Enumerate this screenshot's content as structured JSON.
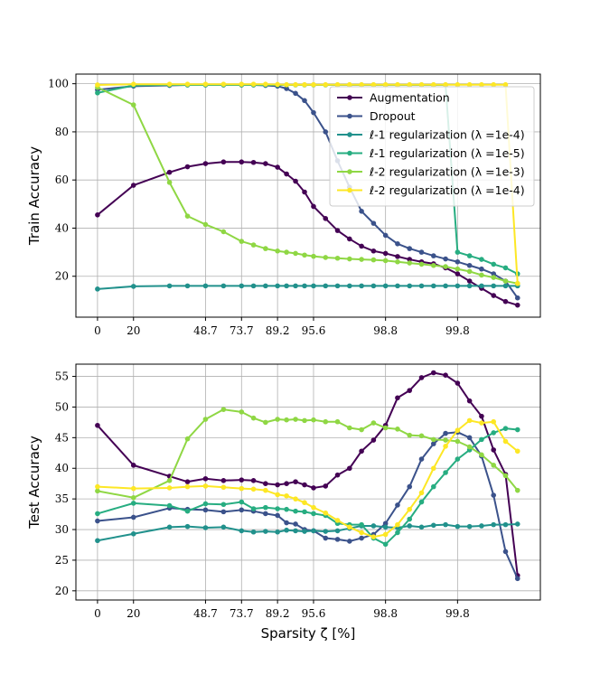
{
  "chart_data": [
    {
      "type": "line",
      "ylabel": "Train Accuracy",
      "xlabel": "",
      "x_tick_labels": [
        "0",
        "20",
        "48.7",
        "73.7",
        "89.2",
        "95.6",
        "98.8",
        "99.8"
      ],
      "x_tick_positions": [
        0,
        1,
        3,
        4,
        5,
        6,
        8,
        10
      ],
      "x_index": [
        0,
        1,
        2,
        2.5,
        3,
        3.5,
        4,
        4.3333,
        4.6667,
        5,
        5.25,
        5.5,
        5.75,
        6,
        6.3333,
        6.6667,
        7,
        7.3333,
        7.6667,
        8,
        8.3333,
        8.6667,
        9,
        9.3333,
        9.6667,
        10,
        10.3333,
        10.6667,
        11,
        11.3333,
        11.6667
      ],
      "xlim": [
        -0.6,
        12.3
      ],
      "ylim": [
        3,
        104
      ],
      "y_ticks": [
        20,
        40,
        60,
        80,
        100
      ],
      "legend_position": "top-right",
      "series": [
        {
          "name": "Augmentation",
          "color": "#440154",
          "values": [
            45.5,
            57.8,
            63.2,
            65.5,
            66.8,
            67.5,
            67.5,
            67.3,
            66.8,
            65.3,
            62.5,
            59.5,
            55,
            49,
            44,
            39,
            35.5,
            32.5,
            30.5,
            29.5,
            28.2,
            27,
            26,
            25.2,
            23.5,
            21,
            18,
            15,
            12,
            9.5,
            8
          ]
        },
        {
          "name": "Dropout",
          "color": "#3b528b",
          "values": [
            97.5,
            99,
            99.3,
            99.5,
            99.5,
            99.5,
            99.5,
            99.5,
            99.3,
            99,
            98,
            96,
            93,
            88,
            80,
            68,
            57,
            47,
            42,
            37,
            33.5,
            31.5,
            30,
            28.5,
            27.2,
            26,
            24.5,
            23,
            21,
            18,
            11
          ]
        },
        {
          "name": "ℓ-1 regularization (λ =1e-4)",
          "color": "#21918c",
          "values": [
            14.7,
            15.8,
            16,
            16,
            16,
            16,
            16,
            16,
            16,
            16,
            16,
            16,
            16,
            16,
            16,
            16,
            16,
            16,
            16,
            16,
            16,
            16,
            16,
            16,
            16,
            16,
            16,
            16,
            16,
            16,
            16
          ]
        },
        {
          "name": "ℓ-1 regularization (λ =1e-5)",
          "color": "#27ad81",
          "values": [
            96.2,
            99.3,
            99.5,
            99.5,
            99.5,
            99.5,
            99.5,
            99.5,
            99.5,
            99.5,
            99.5,
            99.5,
            99.5,
            99.5,
            99.5,
            99.5,
            99.5,
            99.5,
            99.5,
            99.5,
            99.5,
            99.5,
            99.5,
            99.5,
            99.5,
            30,
            28.5,
            27,
            25,
            23.5,
            21
          ]
        },
        {
          "name": "ℓ-2 regularization (λ =1e-3)",
          "color": "#8fd744",
          "values": [
            98.5,
            91.2,
            59,
            45,
            41.5,
            38.5,
            34.5,
            33,
            31.5,
            30.5,
            30,
            29.5,
            28.8,
            28.3,
            27.8,
            27.5,
            27.2,
            27,
            26.8,
            26.5,
            26,
            25.5,
            25,
            24.5,
            24,
            23,
            22,
            20.5,
            19.5,
            18,
            17
          ]
        },
        {
          "name": "ℓ-2 regularization (λ =1e-4)",
          "color": "#fde725",
          "values": [
            99.5,
            99.8,
            99.8,
            99.8,
            99.8,
            99.8,
            99.8,
            99.8,
            99.8,
            99.7,
            99.6,
            99.6,
            99.6,
            99.6,
            99.6,
            99.6,
            99.6,
            99.6,
            99.6,
            99.6,
            99.6,
            99.6,
            99.6,
            99.6,
            99.6,
            99.6,
            99.6,
            99.6,
            99.6,
            99.6,
            17
          ]
        }
      ]
    },
    {
      "type": "line",
      "ylabel": "Test Accuracy",
      "xlabel": "Sparsity ζ [%]",
      "x_tick_labels": [
        "0",
        "20",
        "48.7",
        "73.7",
        "89.2",
        "95.6",
        "98.8",
        "99.8"
      ],
      "x_tick_positions": [
        0,
        1,
        3,
        4,
        5,
        6,
        8,
        10
      ],
      "x_index": [
        0,
        1,
        2,
        2.5,
        3,
        3.5,
        4,
        4.3333,
        4.6667,
        5,
        5.25,
        5.5,
        5.75,
        6,
        6.3333,
        6.6667,
        7,
        7.3333,
        7.6667,
        8,
        8.3333,
        8.6667,
        9,
        9.3333,
        9.6667,
        10,
        10.3333,
        10.6667,
        11,
        11.3333,
        11.6667
      ],
      "xlim": [
        -0.6,
        12.3
      ],
      "ylim": [
        18.5,
        57
      ],
      "y_ticks": [
        20,
        25,
        30,
        35,
        40,
        45,
        50,
        55
      ],
      "series": [
        {
          "name": "Augmentation",
          "color": "#440154",
          "values": [
            47,
            40.5,
            38.7,
            37.8,
            38.3,
            38,
            38.1,
            38,
            37.5,
            37.3,
            37.5,
            37.8,
            37.3,
            36.8,
            37.1,
            38.9,
            40,
            42.8,
            44.6,
            47,
            51.5,
            52.7,
            54.8,
            55.6,
            55.2,
            53.9,
            51,
            48.5,
            43,
            39,
            22.5
          ]
        },
        {
          "name": "Dropout",
          "color": "#3b528b",
          "values": [
            31.4,
            32,
            33.5,
            33.3,
            33.2,
            32.9,
            33.2,
            33,
            32.6,
            32.3,
            31.1,
            30.9,
            30,
            29.8,
            28.6,
            28.4,
            28.1,
            28.6,
            29.2,
            31,
            34,
            37,
            41.5,
            44,
            45.7,
            45.9,
            45,
            42,
            35.6,
            26.4,
            22
          ]
        },
        {
          "name": "ℓ-1 regularization (λ =1e-4)",
          "color": "#21918c",
          "values": [
            28.2,
            29.3,
            30.4,
            30.5,
            30.3,
            30.4,
            29.8,
            29.6,
            29.7,
            29.6,
            29.9,
            29.8,
            29.7,
            29.8,
            29.7,
            29.8,
            30.2,
            30.6,
            30.6,
            30.4,
            30.3,
            30.6,
            30.4,
            30.7,
            30.8,
            30.5,
            30.5,
            30.6,
            30.8,
            30.8,
            30.9
          ]
        },
        {
          "name": "ℓ-1 regularization (λ =1e-5)",
          "color": "#27ad81",
          "values": [
            32.6,
            34.3,
            33.9,
            33,
            34.2,
            34.1,
            34.5,
            33.4,
            33.6,
            33.4,
            33.3,
            33,
            32.9,
            32.6,
            32.3,
            31,
            30.8,
            30.8,
            28.6,
            27.6,
            29.5,
            31.7,
            34.5,
            37,
            39.3,
            41.5,
            43,
            44.7,
            45.8,
            46.5,
            46.3
          ]
        },
        {
          "name": "ℓ-2 regularization (λ =1e-3)",
          "color": "#8fd744",
          "values": [
            36.3,
            35.2,
            38,
            44.8,
            48,
            49.6,
            49.2,
            48.2,
            47.5,
            48,
            47.9,
            48,
            47.8,
            47.9,
            47.6,
            47.6,
            46.6,
            46.3,
            47.4,
            46.6,
            46.4,
            45.4,
            45.3,
            44.7,
            44.6,
            44.4,
            43.5,
            42.2,
            40.5,
            38.8,
            36.4
          ]
        },
        {
          "name": "ℓ-2 regularization (λ =1e-4)",
          "color": "#fde725",
          "values": [
            37,
            36.7,
            36.8,
            37,
            37.1,
            36.9,
            36.7,
            36.6,
            36.4,
            35.7,
            35.5,
            35,
            34.4,
            33.6,
            32.7,
            31.5,
            30.4,
            29.5,
            28.8,
            29.2,
            30.8,
            33.3,
            36,
            40,
            43.6,
            46.2,
            47.8,
            47.4,
            47.6,
            44.4,
            42.8
          ]
        }
      ]
    }
  ]
}
